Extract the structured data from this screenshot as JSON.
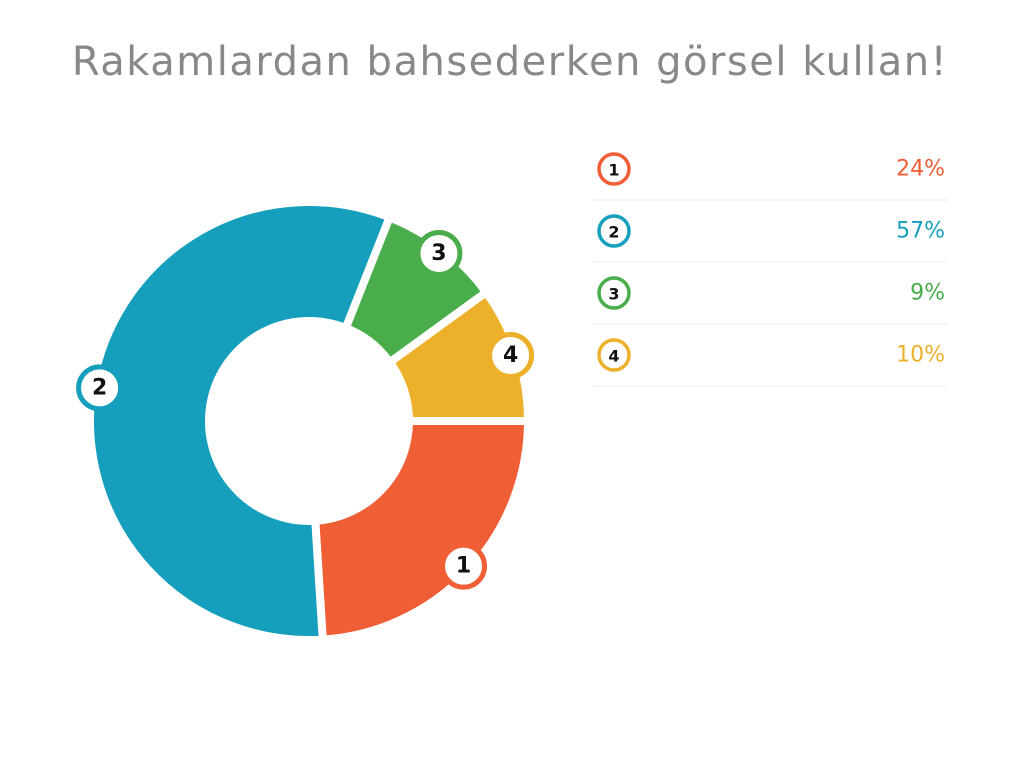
{
  "chart_data": {
    "type": "donut",
    "title": "Rakamlardan bahsederken görsel kullan!",
    "categories": [
      "1",
      "2",
      "3",
      "4"
    ],
    "values": [
      24,
      57,
      9,
      10
    ],
    "value_labels": [
      "24%",
      "57%",
      "9%",
      "10%"
    ],
    "colors": [
      "#f05e35",
      "#169fbc",
      "#4aad4b",
      "#ecb02a"
    ]
  }
}
